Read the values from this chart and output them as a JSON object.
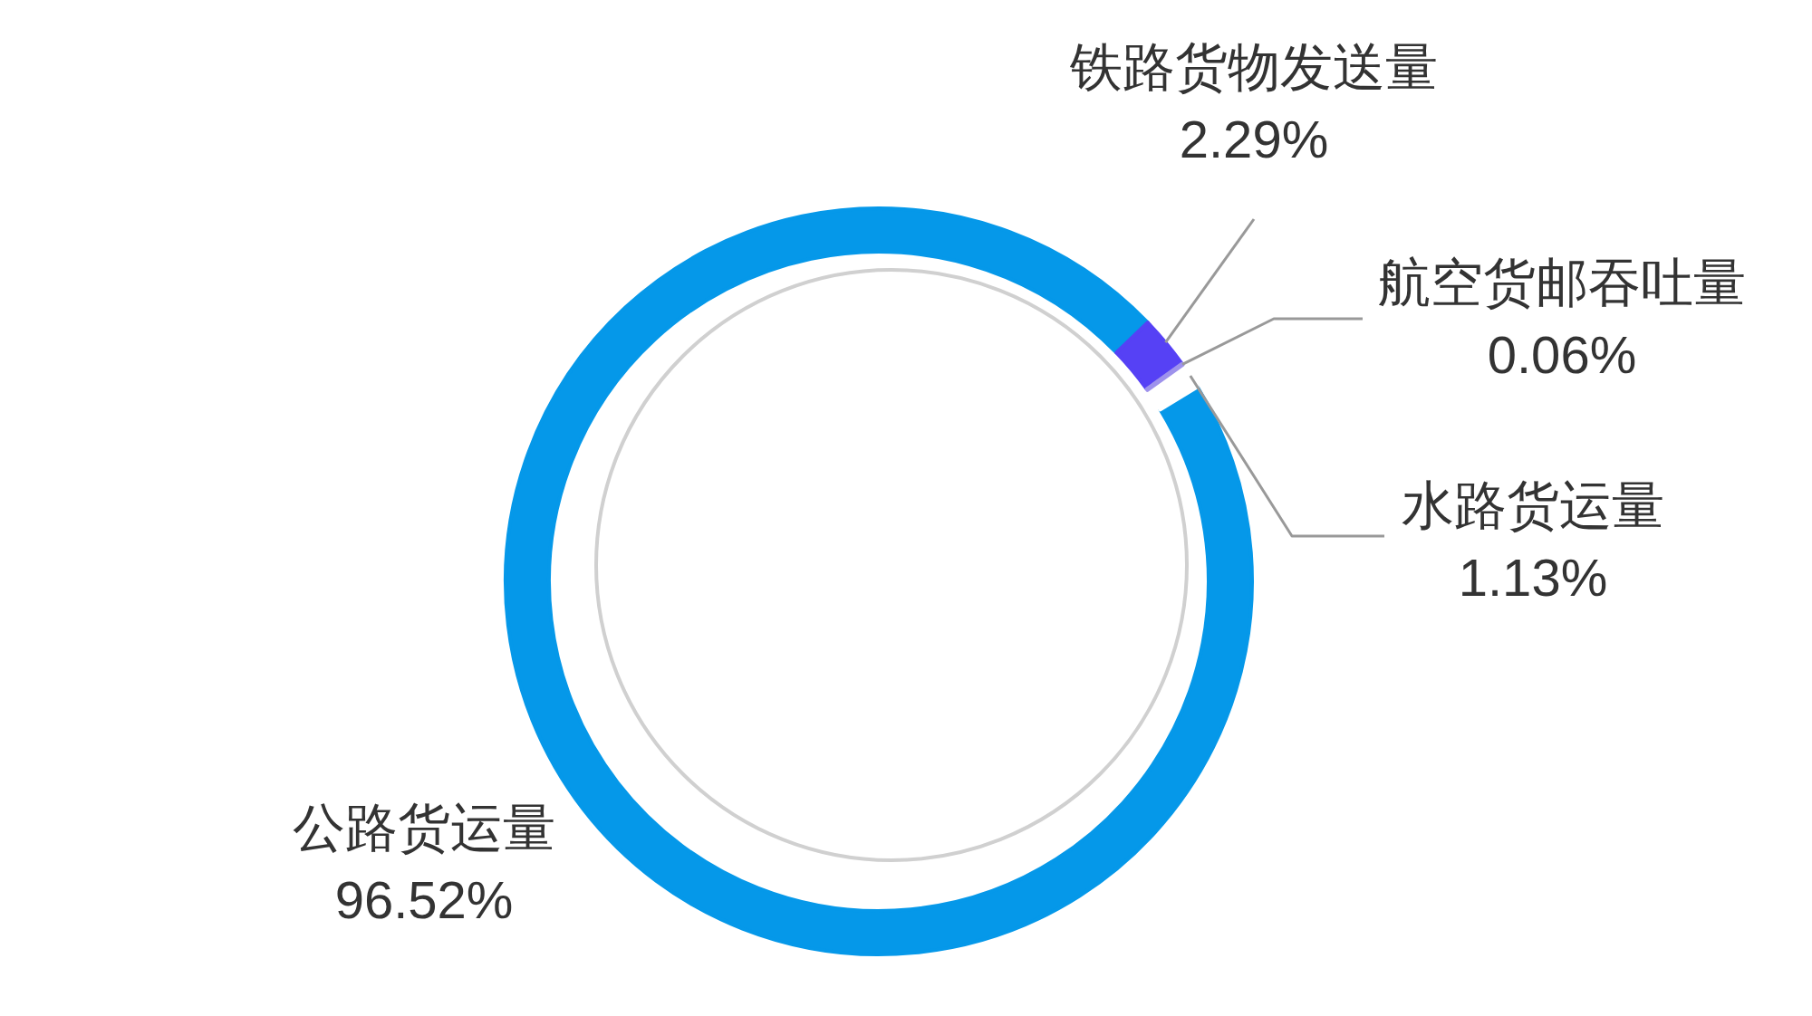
{
  "chart_data": {
    "type": "donut",
    "categories": [
      "公路货运量",
      "铁路货物发送量",
      "航空货邮吞吐量",
      "水路货运量"
    ],
    "values": [
      96.52,
      2.29,
      0.06,
      1.13
    ],
    "colors": [
      "#0598e9",
      "#5641f5",
      "#9e92ec",
      "#ffffff"
    ],
    "value_labels": [
      "96.52%",
      "2.29%",
      "0.06%",
      "1.13%"
    ]
  }
}
